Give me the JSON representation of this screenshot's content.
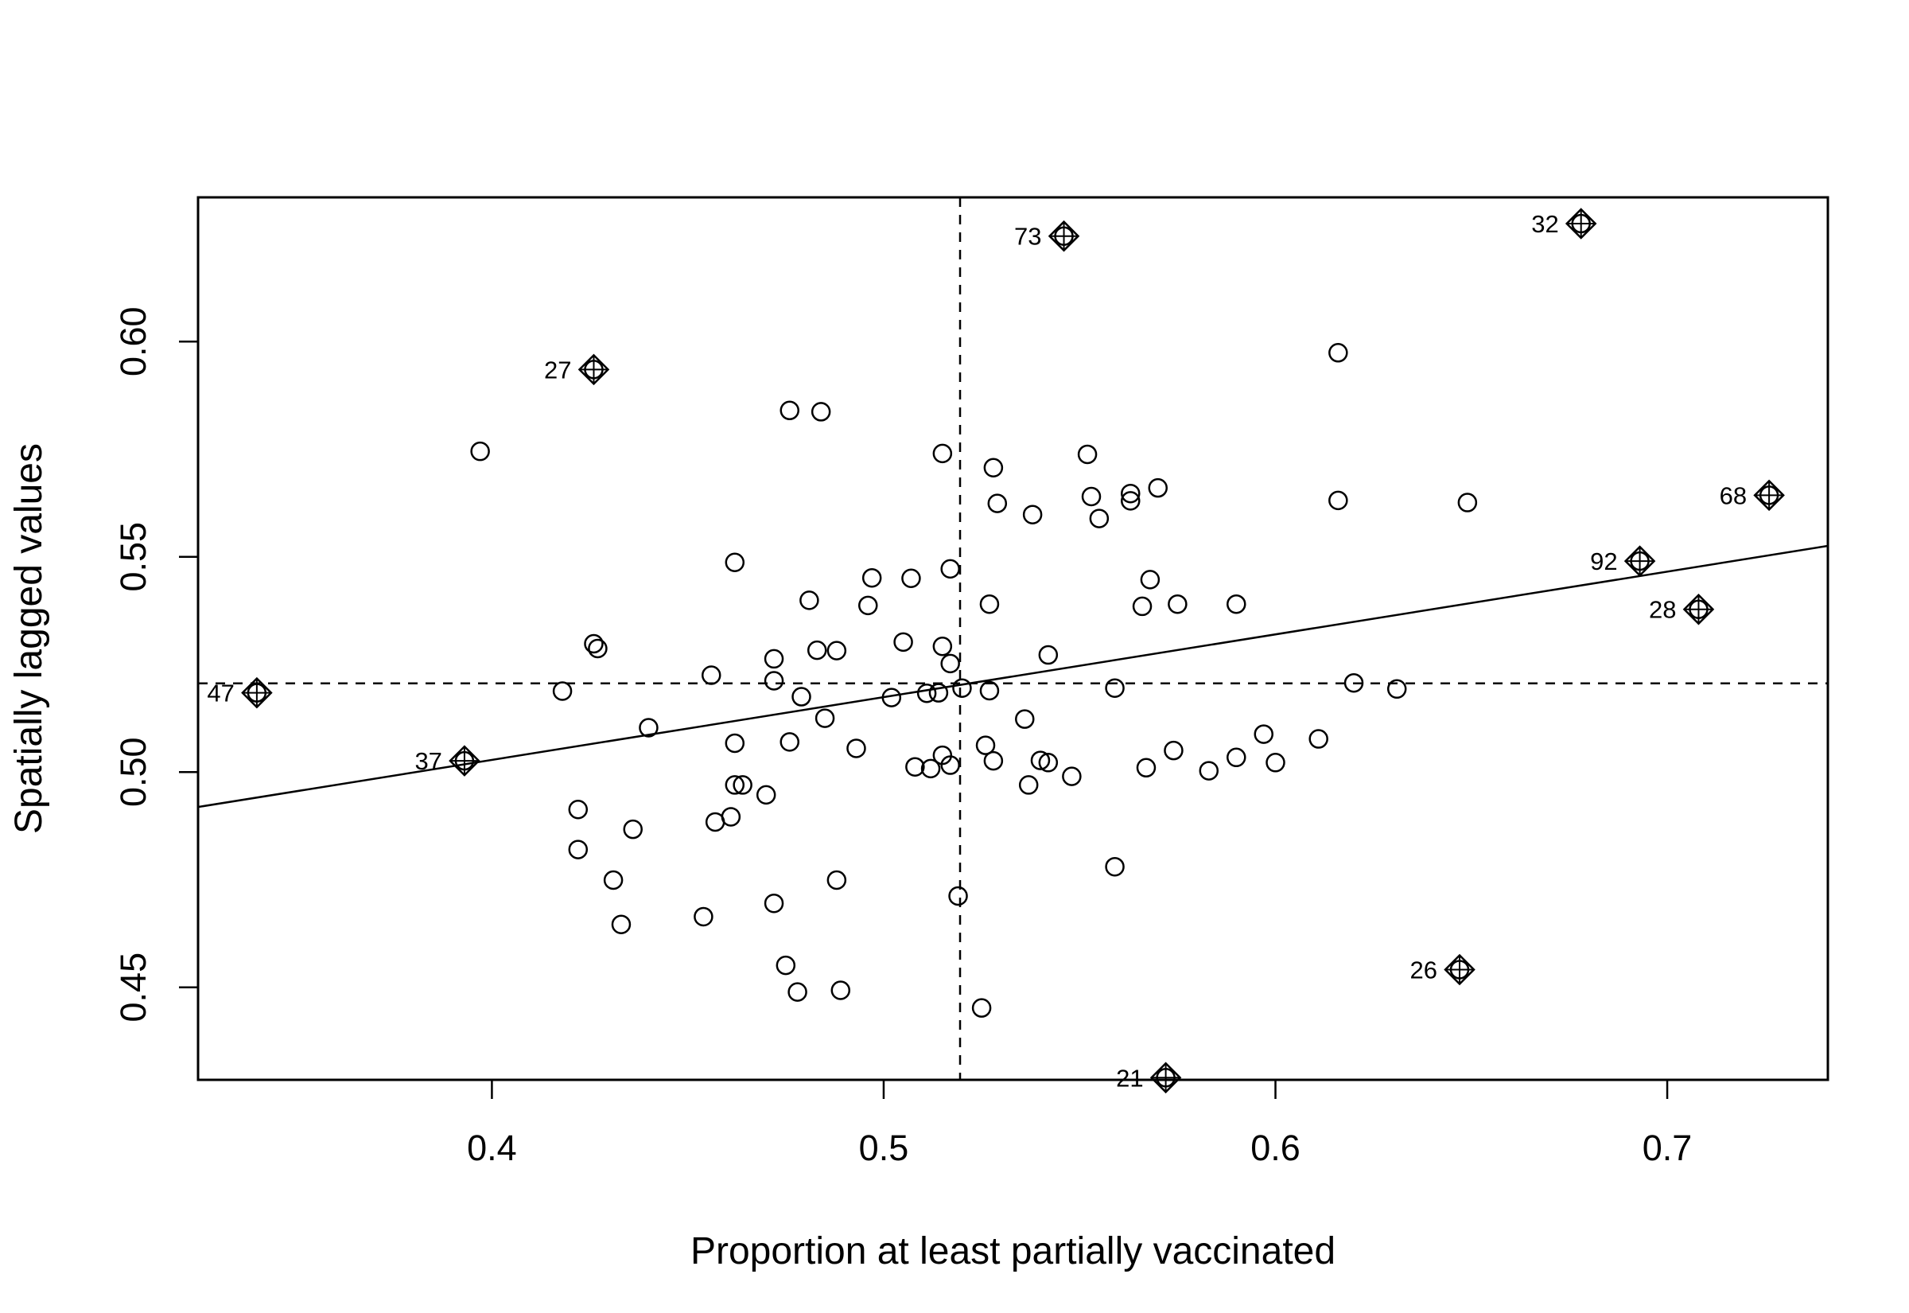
{
  "chart_data": {
    "type": "scatter",
    "title": "",
    "xlabel": "Proportion at least partially vaccinated",
    "ylabel": "Spatially lagged values",
    "xlim": [
      0.325,
      0.741
    ],
    "ylim": [
      0.4285,
      0.6335
    ],
    "x_ticks": [
      0.4,
      0.5,
      0.6,
      0.7
    ],
    "x_tick_labels": [
      "0.4",
      "0.5",
      "0.6",
      "0.7"
    ],
    "y_ticks": [
      0.45,
      0.5,
      0.55,
      0.6
    ],
    "y_tick_labels": [
      "0.45",
      "0.50",
      "0.55",
      "0.60"
    ],
    "grid": false,
    "legend": "none",
    "mean_x": 0.5195,
    "mean_y": 0.5206,
    "regression_line": {
      "intercept": 0.4445,
      "slope": 0.1458
    },
    "points": [
      {
        "x": 0.397,
        "y": 0.5745
      },
      {
        "x": 0.418,
        "y": 0.5188
      },
      {
        "x": 0.422,
        "y": 0.4913
      },
      {
        "x": 0.422,
        "y": 0.482
      },
      {
        "x": 0.426,
        "y": 0.5298
      },
      {
        "x": 0.427,
        "y": 0.5287
      },
      {
        "x": 0.431,
        "y": 0.4749
      },
      {
        "x": 0.433,
        "y": 0.4646
      },
      {
        "x": 0.436,
        "y": 0.4867
      },
      {
        "x": 0.44,
        "y": 0.5103
      },
      {
        "x": 0.454,
        "y": 0.4664
      },
      {
        "x": 0.456,
        "y": 0.5225
      },
      {
        "x": 0.457,
        "y": 0.4884
      },
      {
        "x": 0.461,
        "y": 0.4896
      },
      {
        "x": 0.462,
        "y": 0.5067
      },
      {
        "x": 0.462,
        "y": 0.5487
      },
      {
        "x": 0.462,
        "y": 0.497
      },
      {
        "x": 0.464,
        "y": 0.497
      },
      {
        "x": 0.47,
        "y": 0.4947
      },
      {
        "x": 0.472,
        "y": 0.5212
      },
      {
        "x": 0.472,
        "y": 0.5263
      },
      {
        "x": 0.472,
        "y": 0.4695
      },
      {
        "x": 0.475,
        "y": 0.4551
      },
      {
        "x": 0.476,
        "y": 0.584
      },
      {
        "x": 0.476,
        "y": 0.507
      },
      {
        "x": 0.478,
        "y": 0.4489
      },
      {
        "x": 0.479,
        "y": 0.5175
      },
      {
        "x": 0.481,
        "y": 0.5399
      },
      {
        "x": 0.483,
        "y": 0.5283
      },
      {
        "x": 0.484,
        "y": 0.5837
      },
      {
        "x": 0.485,
        "y": 0.5125
      },
      {
        "x": 0.488,
        "y": 0.5282
      },
      {
        "x": 0.488,
        "y": 0.4749
      },
      {
        "x": 0.489,
        "y": 0.4493
      },
      {
        "x": 0.493,
        "y": 0.5055
      },
      {
        "x": 0.496,
        "y": 0.5387
      },
      {
        "x": 0.497,
        "y": 0.5451
      },
      {
        "x": 0.502,
        "y": 0.5173
      },
      {
        "x": 0.505,
        "y": 0.5302
      },
      {
        "x": 0.507,
        "y": 0.545
      },
      {
        "x": 0.508,
        "y": 0.5012
      },
      {
        "x": 0.511,
        "y": 0.5183
      },
      {
        "x": 0.512,
        "y": 0.5008
      },
      {
        "x": 0.514,
        "y": 0.5184
      },
      {
        "x": 0.515,
        "y": 0.574
      },
      {
        "x": 0.515,
        "y": 0.5292
      },
      {
        "x": 0.515,
        "y": 0.5039
      },
      {
        "x": 0.517,
        "y": 0.5252
      },
      {
        "x": 0.517,
        "y": 0.5016
      },
      {
        "x": 0.517,
        "y": 0.5472
      },
      {
        "x": 0.519,
        "y": 0.4712
      },
      {
        "x": 0.52,
        "y": 0.5195
      },
      {
        "x": 0.525,
        "y": 0.4452
      },
      {
        "x": 0.526,
        "y": 0.5062
      },
      {
        "x": 0.527,
        "y": 0.5189
      },
      {
        "x": 0.527,
        "y": 0.539
      },
      {
        "x": 0.528,
        "y": 0.5707
      },
      {
        "x": 0.528,
        "y": 0.5026
      },
      {
        "x": 0.529,
        "y": 0.5624
      },
      {
        "x": 0.536,
        "y": 0.5123
      },
      {
        "x": 0.537,
        "y": 0.497
      },
      {
        "x": 0.538,
        "y": 0.5598
      },
      {
        "x": 0.54,
        "y": 0.5027
      },
      {
        "x": 0.542,
        "y": 0.5272
      },
      {
        "x": 0.542,
        "y": 0.5022
      },
      {
        "x": 0.548,
        "y": 0.499
      },
      {
        "x": 0.552,
        "y": 0.5738
      },
      {
        "x": 0.553,
        "y": 0.564
      },
      {
        "x": 0.555,
        "y": 0.5589
      },
      {
        "x": 0.559,
        "y": 0.5195
      },
      {
        "x": 0.559,
        "y": 0.478
      },
      {
        "x": 0.563,
        "y": 0.5647
      },
      {
        "x": 0.563,
        "y": 0.563
      },
      {
        "x": 0.566,
        "y": 0.5385
      },
      {
        "x": 0.567,
        "y": 0.501
      },
      {
        "x": 0.568,
        "y": 0.5447
      },
      {
        "x": 0.57,
        "y": 0.566
      },
      {
        "x": 0.574,
        "y": 0.505
      },
      {
        "x": 0.575,
        "y": 0.539
      },
      {
        "x": 0.583,
        "y": 0.5003
      },
      {
        "x": 0.59,
        "y": 0.539
      },
      {
        "x": 0.59,
        "y": 0.5034
      },
      {
        "x": 0.597,
        "y": 0.5088
      },
      {
        "x": 0.6,
        "y": 0.5022
      },
      {
        "x": 0.611,
        "y": 0.5077
      },
      {
        "x": 0.616,
        "y": 0.5631
      },
      {
        "x": 0.616,
        "y": 0.5974
      },
      {
        "x": 0.62,
        "y": 0.5207
      },
      {
        "x": 0.631,
        "y": 0.5193
      },
      {
        "x": 0.649,
        "y": 0.5626
      }
    ],
    "influential_points": [
      {
        "label": "47",
        "x": 0.34,
        "y": 0.5184
      },
      {
        "label": "37",
        "x": 0.393,
        "y": 0.5026
      },
      {
        "label": "27",
        "x": 0.426,
        "y": 0.5935
      },
      {
        "label": "73",
        "x": 0.546,
        "y": 0.6245
      },
      {
        "label": "21",
        "x": 0.572,
        "y": 0.429
      },
      {
        "label": "26",
        "x": 0.647,
        "y": 0.4541
      },
      {
        "label": "32",
        "x": 0.678,
        "y": 0.6274
      },
      {
        "label": "92",
        "x": 0.693,
        "y": 0.549
      },
      {
        "label": "28",
        "x": 0.708,
        "y": 0.5378
      },
      {
        "label": "68",
        "x": 0.726,
        "y": 0.5643
      }
    ]
  }
}
